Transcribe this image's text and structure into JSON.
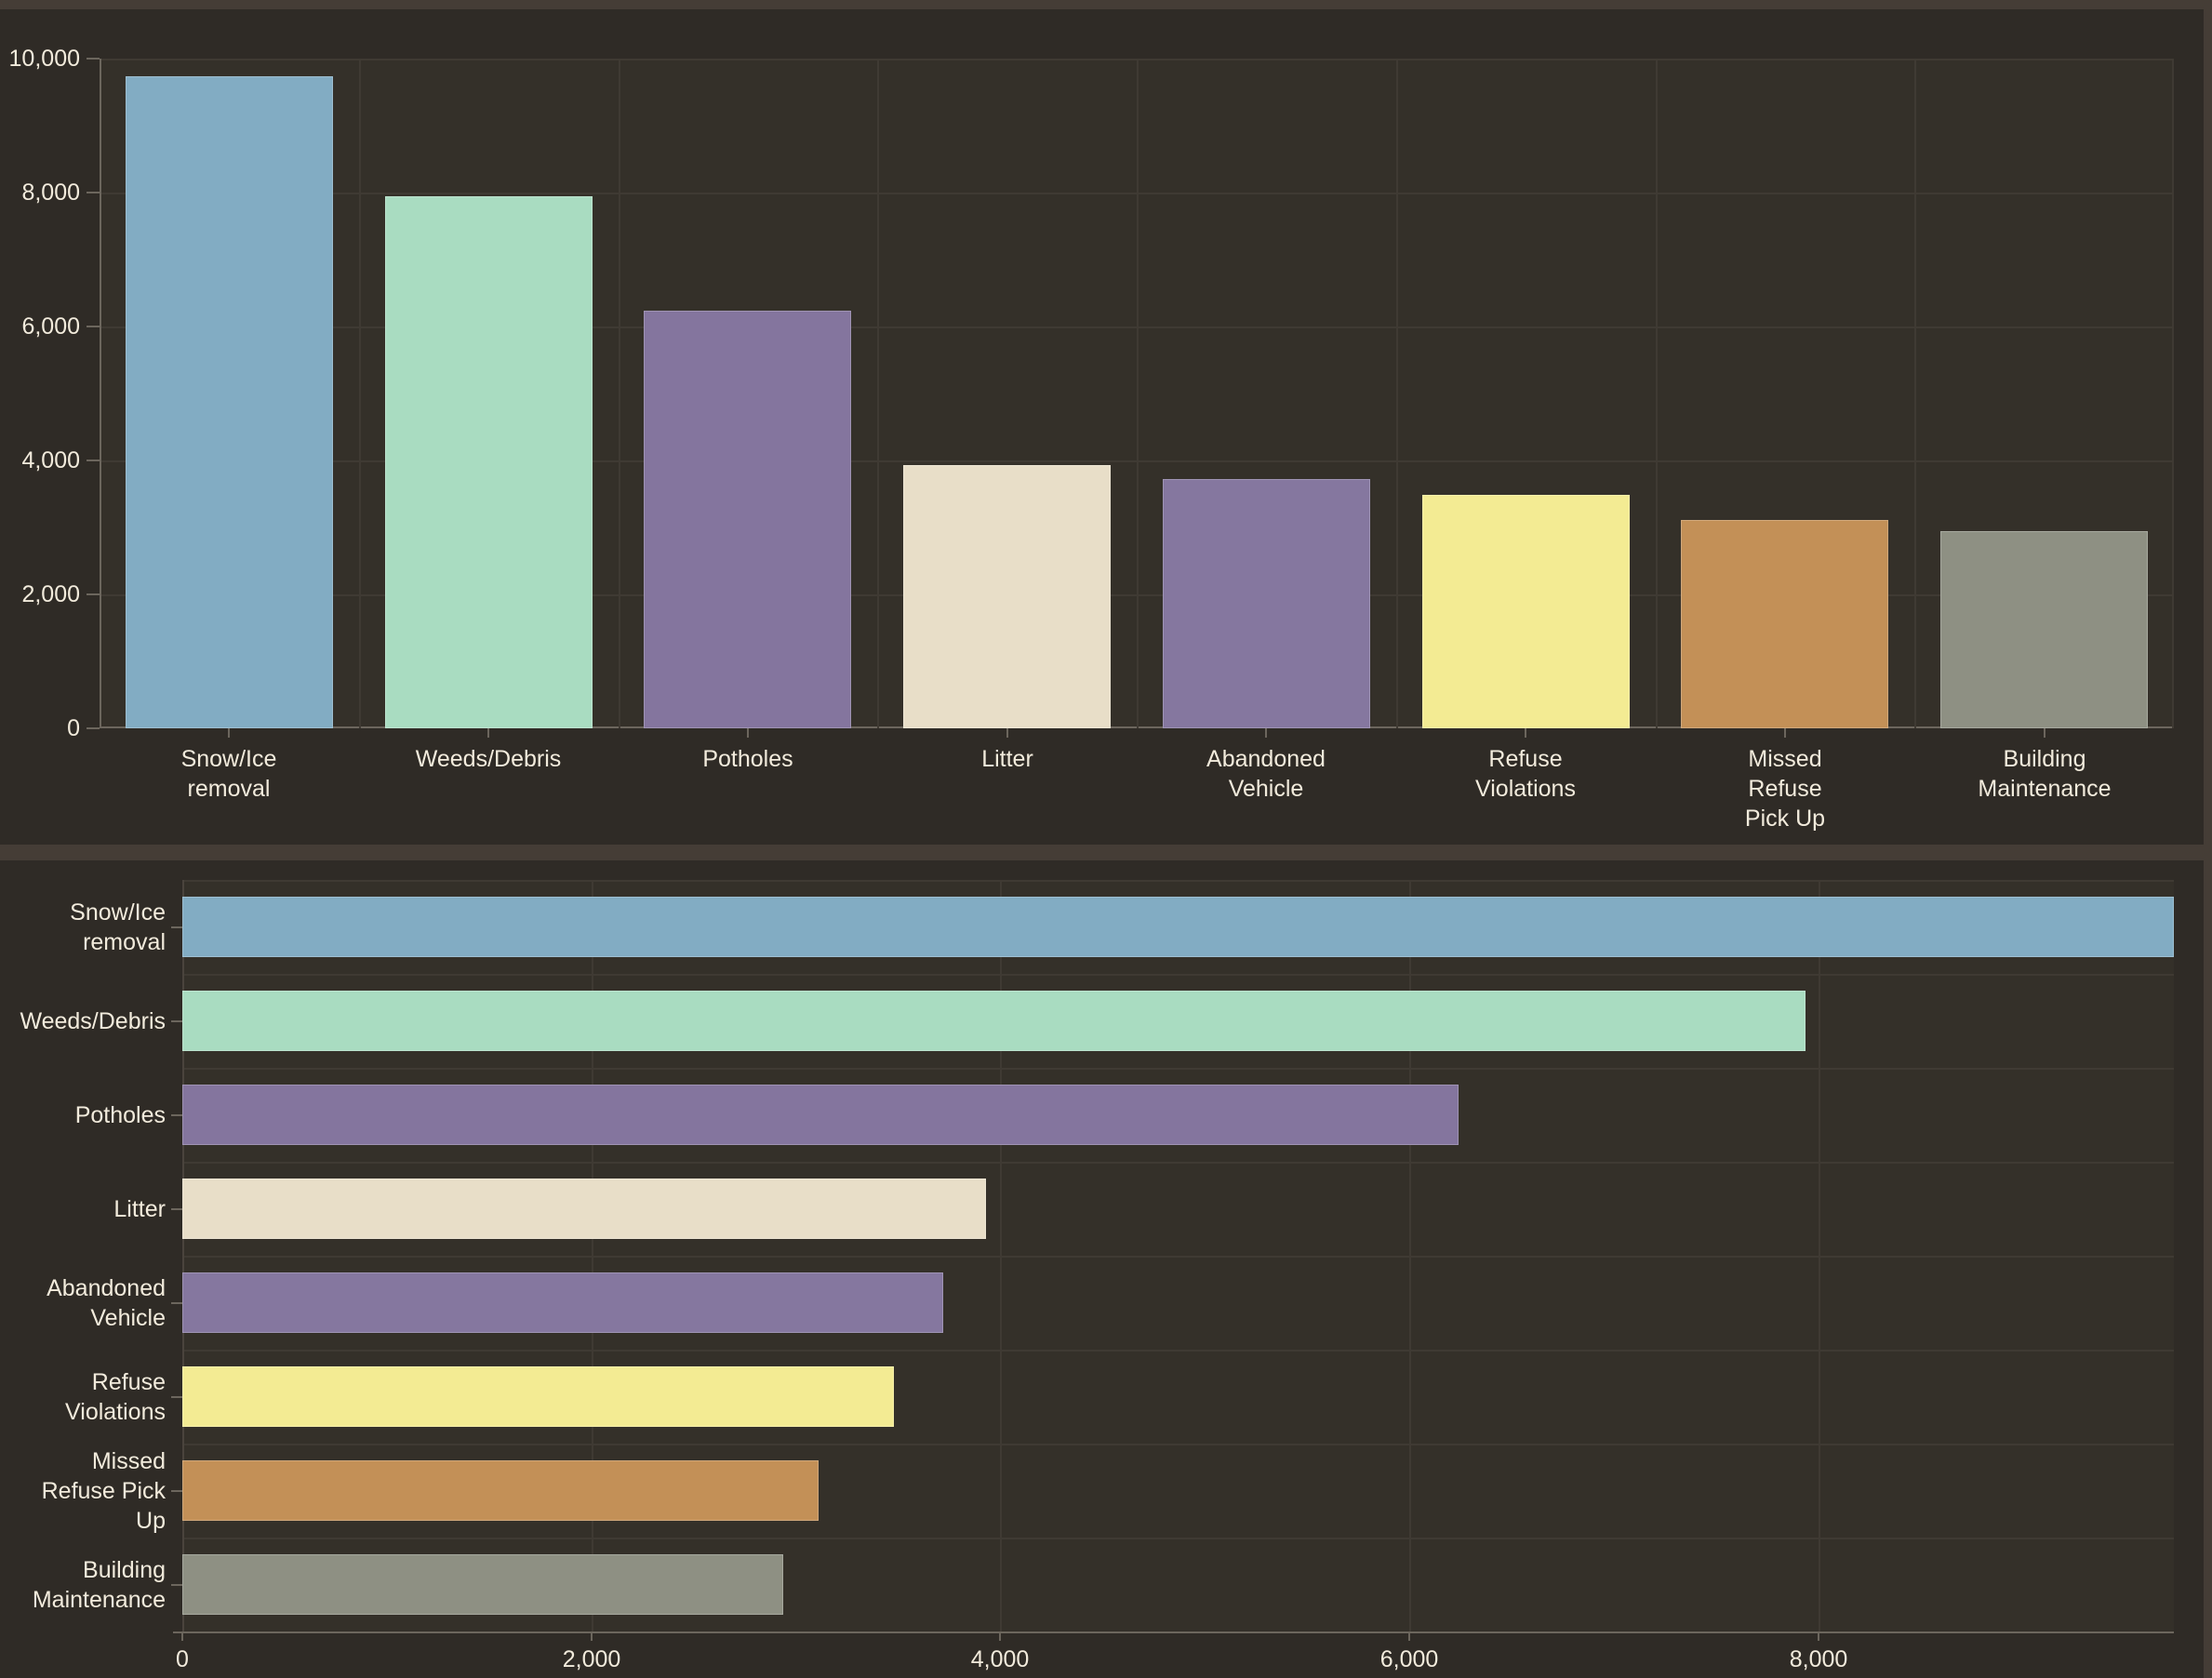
{
  "theme": {
    "page_bg": "#453D36",
    "panel_bg": "#2F2B26",
    "plot_bg": "#343029",
    "gridline": "#3F3A33",
    "axis_line": "#6C665D",
    "tick_mark": "#6C665D",
    "text": "#F2EBDC",
    "bar_border": "rgba(255,255,255,0.22)"
  },
  "chart_data": [
    {
      "id": "requests-by-type-column-chart",
      "type": "bar",
      "orientation": "vertical",
      "title": "",
      "legend": "none",
      "grid": true,
      "categories": [
        "Snow/Ice removal",
        "Weeds/Debris",
        "Potholes",
        "Litter",
        "Abandoned Vehicle",
        "Refuse Violations",
        "Missed Refuse Pick Up",
        "Building Maintenance"
      ],
      "values": [
        9740,
        7940,
        6240,
        3930,
        3720,
        3480,
        3110,
        2940
      ],
      "colors": [
        "#82ACC3",
        "#A9DCC1",
        "#84759E",
        "#E8DEC8",
        "#85779F",
        "#F3EB93",
        "#C39057",
        "#8E9083"
      ],
      "label_lines": [
        [
          "Snow/Ice",
          "removal"
        ],
        [
          "Weeds/Debris"
        ],
        [
          "Potholes"
        ],
        [
          "Litter"
        ],
        [
          "Abandoned",
          "Vehicle"
        ],
        [
          "Refuse",
          "Violations"
        ],
        [
          "Missed",
          "Refuse",
          "Pick Up"
        ],
        [
          "Building",
          "Maintenance"
        ]
      ],
      "y_ticks": [
        {
          "v": 10000,
          "label": "10,000"
        },
        {
          "v": 8000,
          "label": "8,000"
        },
        {
          "v": 6000,
          "label": "6,000"
        },
        {
          "v": 4000,
          "label": "4,000"
        },
        {
          "v": 2000,
          "label": "2,000"
        },
        {
          "v": 0,
          "label": "0"
        }
      ],
      "ylim": [
        0,
        10000
      ],
      "xlabel": "",
      "ylabel": ""
    },
    {
      "id": "requests-by-type-row-chart",
      "type": "bar",
      "orientation": "horizontal",
      "title": "",
      "legend": "none",
      "grid": true,
      "categories": [
        "Snow/Ice removal",
        "Weeds/Debris",
        "Potholes",
        "Litter",
        "Abandoned Vehicle",
        "Refuse Violations",
        "Missed Refuse Pick Up",
        "Building Maintenance"
      ],
      "values": [
        9740,
        7940,
        6240,
        3930,
        3720,
        3480,
        3110,
        2940
      ],
      "colors": [
        "#82ACC3",
        "#A9DCC1",
        "#84759E",
        "#E8DEC8",
        "#85779F",
        "#F3EB93",
        "#C39057",
        "#8E9083"
      ],
      "label_lines": [
        [
          "Snow/Ice",
          "removal"
        ],
        [
          "Weeds/Debris"
        ],
        [
          "Potholes"
        ],
        [
          "Litter"
        ],
        [
          "Abandoned",
          "Vehicle"
        ],
        [
          "Refuse",
          "Violations"
        ],
        [
          "Missed",
          "Refuse Pick",
          "Up"
        ],
        [
          "Building",
          "Maintenance"
        ]
      ],
      "x_ticks": [
        {
          "v": 0,
          "label": "0"
        },
        {
          "v": 2000,
          "label": "2,000"
        },
        {
          "v": 4000,
          "label": "4,000"
        },
        {
          "v": 6000,
          "label": "6,000"
        },
        {
          "v": 8000,
          "label": "8,000"
        }
      ],
      "xlim": [
        0,
        9740
      ],
      "xlabel": "",
      "ylabel": ""
    }
  ]
}
